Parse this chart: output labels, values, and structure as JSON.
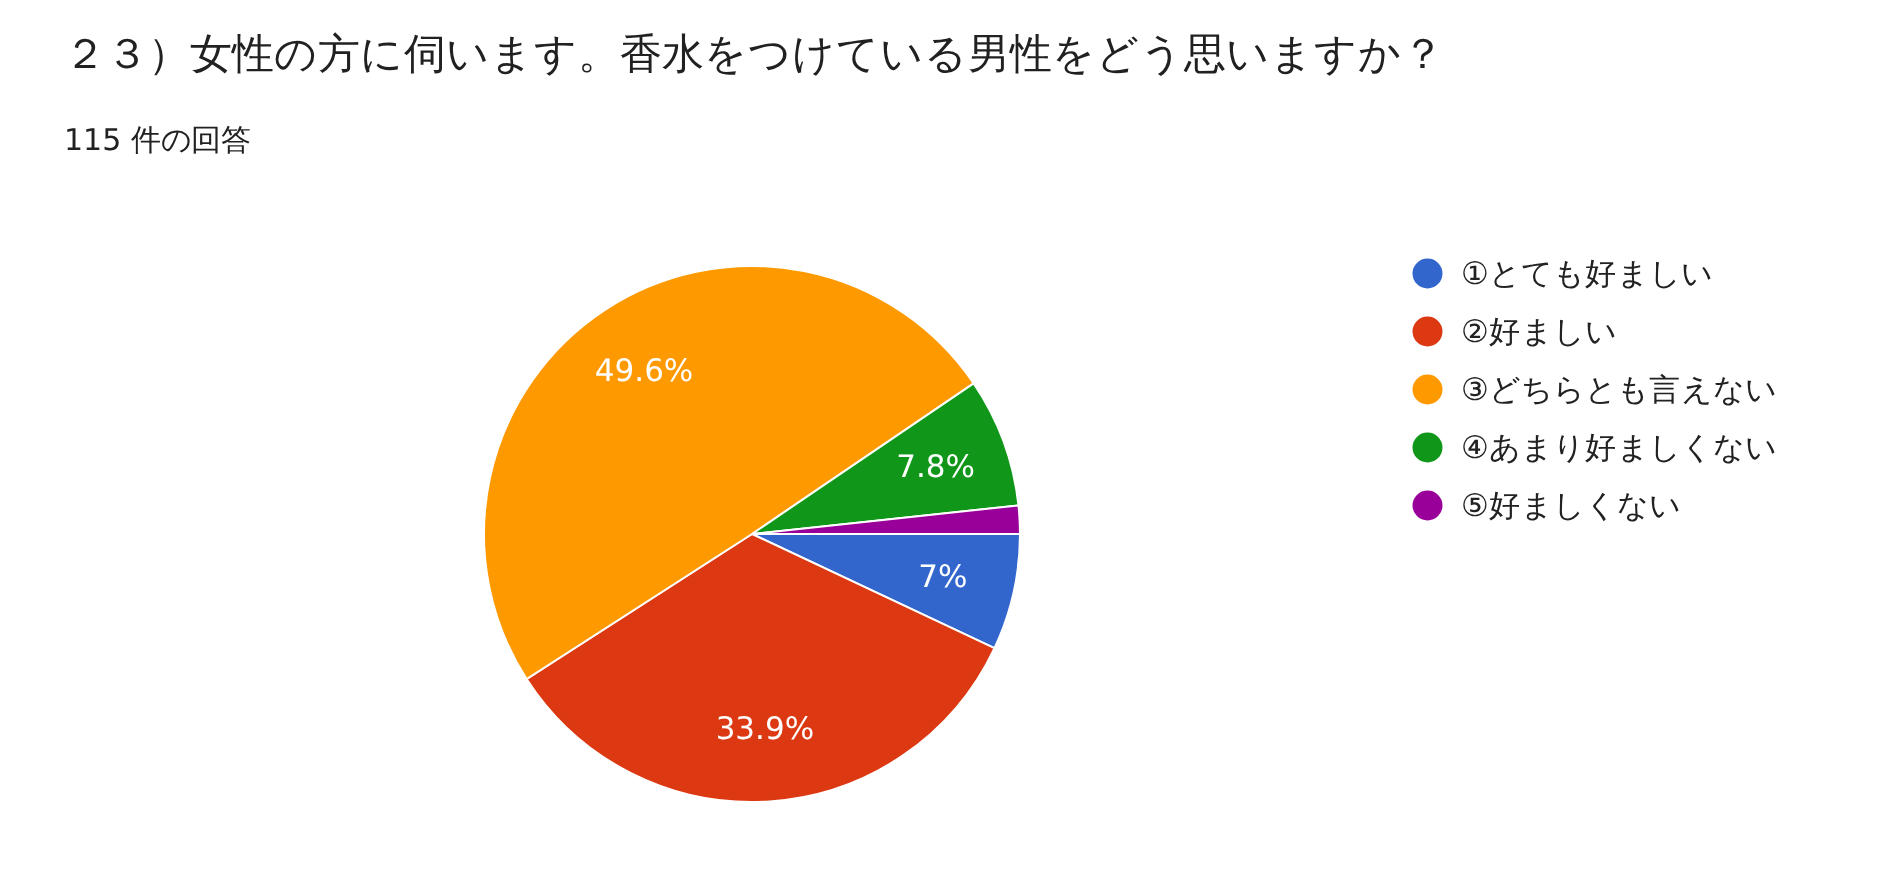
{
  "chart_data": {
    "type": "pie",
    "title": "２３）女性の方に伺います。香水をつけている男性をどう思いますか？",
    "subtitle": "115 件の回答",
    "categories": [
      "①とても好ましい",
      "②好ましい",
      "③どちらとも言えない",
      "④あまり好ましくない",
      "⑤好ましくない"
    ],
    "values": [
      7,
      33.9,
      49.6,
      7.8,
      1.7
    ],
    "colors": [
      "#3366cc",
      "#dc3912",
      "#ff9900",
      "#109618",
      "#990099"
    ],
    "value_labels": [
      "7%",
      "33.9%",
      "49.6%",
      "7.8%",
      null
    ],
    "legend": "right"
  }
}
